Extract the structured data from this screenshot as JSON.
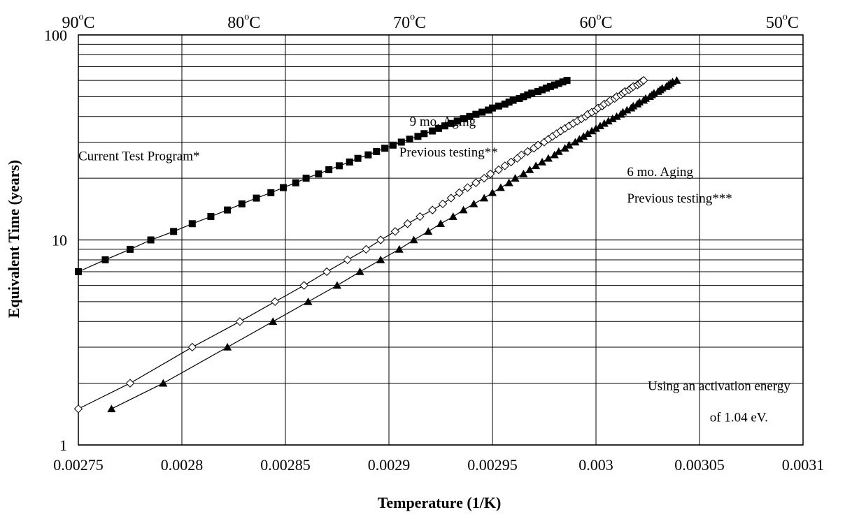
{
  "chart_data": {
    "type": "scatter",
    "xlabel": "Temperature (1/K)",
    "ylabel": "Equivalent Time (years)",
    "xlim": [
      0.00275,
      0.0031
    ],
    "ylim": [
      1,
      100
    ],
    "yscale": "log",
    "grid": true,
    "legend": "none",
    "x_tick_labels": [
      "0.00275",
      "0.0028",
      "0.00285",
      "0.0029",
      "0.00295",
      "0.003",
      "0.00305",
      "0.0031"
    ],
    "y_tick_labels": [
      "1",
      "10",
      "100"
    ],
    "top_axis_labels": [
      {
        "x": 0.00275,
        "prefix": "90",
        "suffix": "C"
      },
      {
        "x": 0.00283,
        "prefix": "80",
        "suffix": "C"
      },
      {
        "x": 0.00291,
        "prefix": "70",
        "suffix": "C"
      },
      {
        "x": 0.003,
        "prefix": "60",
        "suffix": "C"
      },
      {
        "x": 0.00309,
        "prefix": "50",
        "suffix": "C"
      }
    ],
    "annotations": [
      {
        "text": "Current Test Program*",
        "x": 0.00275,
        "y": 24.5
      },
      {
        "text": "9 mo. Aging",
        "x": 0.00291,
        "y": 36
      },
      {
        "text": "Previous testing**",
        "x": 0.002905,
        "y": 25.5
      },
      {
        "text": "6 mo. Aging",
        "x": 0.003015,
        "y": 20.5
      },
      {
        "text": "Previous testing***",
        "x": 0.003015,
        "y": 15.2
      },
      {
        "text": "Using an activation energy",
        "x": 0.003025,
        "y": 1.85
      },
      {
        "text": "of 1.04 eV.",
        "x": 0.003055,
        "y": 1.3
      }
    ],
    "series": [
      {
        "name": "Current Test Program*",
        "marker": "square-filled",
        "color": "#000000",
        "points": [
          [
            0.00275,
            7
          ],
          [
            0.002763,
            8
          ],
          [
            0.002775,
            9
          ],
          [
            0.002785,
            10
          ],
          [
            0.002796,
            11
          ],
          [
            0.002805,
            12
          ],
          [
            0.002814,
            13
          ],
          [
            0.002822,
            14
          ],
          [
            0.002829,
            15
          ],
          [
            0.002836,
            16
          ],
          [
            0.002843,
            17
          ],
          [
            0.002849,
            18
          ],
          [
            0.002855,
            19
          ],
          [
            0.00286,
            20
          ],
          [
            0.002866,
            21
          ],
          [
            0.002871,
            22
          ],
          [
            0.002876,
            23
          ],
          [
            0.002881,
            24
          ],
          [
            0.002885,
            25
          ],
          [
            0.00289,
            26
          ],
          [
            0.002894,
            27
          ],
          [
            0.002898,
            28
          ],
          [
            0.002902,
            29
          ],
          [
            0.002906,
            30
          ],
          [
            0.00291,
            31
          ],
          [
            0.002914,
            32
          ],
          [
            0.002917,
            33
          ],
          [
            0.002921,
            34
          ],
          [
            0.002924,
            35
          ],
          [
            0.002927,
            36
          ],
          [
            0.00293,
            37
          ],
          [
            0.002933,
            38
          ],
          [
            0.002936,
            39
          ],
          [
            0.002939,
            40
          ],
          [
            0.002942,
            41
          ],
          [
            0.002945,
            42
          ],
          [
            0.002948,
            43
          ],
          [
            0.00295,
            44
          ],
          [
            0.002953,
            45
          ],
          [
            0.002956,
            46
          ],
          [
            0.002958,
            47
          ],
          [
            0.00296,
            48
          ],
          [
            0.002963,
            49
          ],
          [
            0.002965,
            50
          ],
          [
            0.002967,
            51
          ],
          [
            0.002969,
            52
          ],
          [
            0.002972,
            53
          ],
          [
            0.002974,
            54
          ],
          [
            0.002976,
            55
          ],
          [
            0.002978,
            56
          ],
          [
            0.00298,
            57
          ],
          [
            0.002982,
            58
          ],
          [
            0.002984,
            59
          ],
          [
            0.002986,
            60
          ]
        ]
      },
      {
        "name": "9 mo. Aging Previous testing**",
        "marker": "diamond-open",
        "color": "#000000",
        "points": [
          [
            0.00275,
            1.5
          ],
          [
            0.002775,
            2
          ],
          [
            0.002805,
            3
          ],
          [
            0.002828,
            4
          ],
          [
            0.002845,
            5
          ],
          [
            0.002859,
            6
          ],
          [
            0.00287,
            7
          ],
          [
            0.00288,
            8
          ],
          [
            0.002889,
            9
          ],
          [
            0.002896,
            10
          ],
          [
            0.002903,
            11
          ],
          [
            0.002909,
            12
          ],
          [
            0.002915,
            13
          ],
          [
            0.002921,
            14
          ],
          [
            0.002926,
            15
          ],
          [
            0.00293,
            16
          ],
          [
            0.002934,
            17
          ],
          [
            0.002938,
            18
          ],
          [
            0.002942,
            19
          ],
          [
            0.002946,
            20
          ],
          [
            0.002949,
            21
          ],
          [
            0.002953,
            22
          ],
          [
            0.002956,
            23
          ],
          [
            0.002959,
            24
          ],
          [
            0.002962,
            25
          ],
          [
            0.002964,
            26
          ],
          [
            0.002967,
            27
          ],
          [
            0.00297,
            28
          ],
          [
            0.002972,
            29
          ],
          [
            0.002975,
            30
          ],
          [
            0.002977,
            31
          ],
          [
            0.002979,
            32
          ],
          [
            0.002981,
            33
          ],
          [
            0.002983,
            34
          ],
          [
            0.002985,
            35
          ],
          [
            0.002987,
            36
          ],
          [
            0.002989,
            37
          ],
          [
            0.002991,
            38
          ],
          [
            0.002993,
            39
          ],
          [
            0.002995,
            40
          ],
          [
            0.002996,
            41
          ],
          [
            0.002998,
            42
          ],
          [
            0.003,
            43
          ],
          [
            0.003001,
            44
          ],
          [
            0.003003,
            45
          ],
          [
            0.003004,
            46
          ],
          [
            0.003006,
            47
          ],
          [
            0.003007,
            48
          ],
          [
            0.003009,
            49
          ],
          [
            0.00301,
            50
          ],
          [
            0.003012,
            51
          ],
          [
            0.003013,
            52
          ],
          [
            0.003014,
            53
          ],
          [
            0.003016,
            54
          ],
          [
            0.003017,
            55
          ],
          [
            0.003018,
            56
          ],
          [
            0.00302,
            57
          ],
          [
            0.003021,
            58
          ],
          [
            0.003022,
            59
          ],
          [
            0.003023,
            60
          ]
        ]
      },
      {
        "name": "6 mo. Aging Previous testing***",
        "marker": "triangle-filled",
        "color": "#000000",
        "points": [
          [
            0.002766,
            1.5
          ],
          [
            0.002791,
            2
          ],
          [
            0.002822,
            3
          ],
          [
            0.002844,
            4
          ],
          [
            0.002861,
            5
          ],
          [
            0.002875,
            6
          ],
          [
            0.002886,
            7
          ],
          [
            0.002896,
            8
          ],
          [
            0.002905,
            9
          ],
          [
            0.002912,
            10
          ],
          [
            0.002919,
            11
          ],
          [
            0.002925,
            12
          ],
          [
            0.002931,
            13
          ],
          [
            0.002936,
            14
          ],
          [
            0.002941,
            15
          ],
          [
            0.002946,
            16
          ],
          [
            0.00295,
            17
          ],
          [
            0.002954,
            18
          ],
          [
            0.002958,
            19
          ],
          [
            0.002961,
            20
          ],
          [
            0.002965,
            21
          ],
          [
            0.002968,
            22
          ],
          [
            0.002971,
            23
          ],
          [
            0.002974,
            24
          ],
          [
            0.002977,
            25
          ],
          [
            0.00298,
            26
          ],
          [
            0.002982,
            27
          ],
          [
            0.002985,
            28
          ],
          [
            0.002987,
            29
          ],
          [
            0.00299,
            30
          ],
          [
            0.002992,
            31
          ],
          [
            0.002994,
            32
          ],
          [
            0.002996,
            33
          ],
          [
            0.002998,
            34
          ],
          [
            0.003,
            35
          ],
          [
            0.003002,
            36
          ],
          [
            0.003004,
            37
          ],
          [
            0.003006,
            38
          ],
          [
            0.003008,
            39
          ],
          [
            0.00301,
            40
          ],
          [
            0.003012,
            41
          ],
          [
            0.003013,
            42
          ],
          [
            0.003015,
            43
          ],
          [
            0.003017,
            44
          ],
          [
            0.003018,
            45
          ],
          [
            0.00302,
            46
          ],
          [
            0.003021,
            47
          ],
          [
            0.003023,
            48
          ],
          [
            0.003024,
            49
          ],
          [
            0.003026,
            50
          ],
          [
            0.003027,
            51
          ],
          [
            0.003028,
            52
          ],
          [
            0.00303,
            53
          ],
          [
            0.003031,
            54
          ],
          [
            0.003032,
            55
          ],
          [
            0.003034,
            56
          ],
          [
            0.003035,
            57
          ],
          [
            0.003036,
            58
          ],
          [
            0.003037,
            59
          ],
          [
            0.003039,
            60
          ]
        ]
      }
    ]
  }
}
